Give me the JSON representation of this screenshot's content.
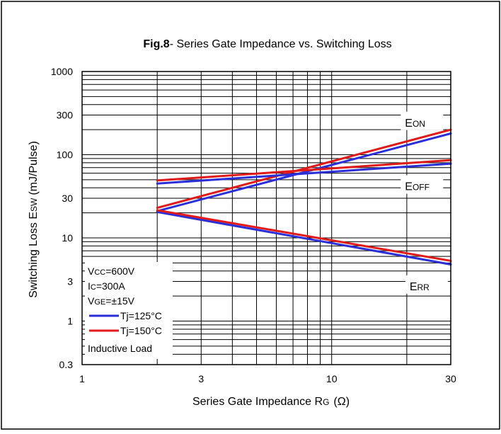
{
  "chart_data": {
    "type": "line",
    "title_bold": "Fig.8",
    "title_rest": "- Series Gate Impedance vs. Switching Loss",
    "xlabel_main": "Series Gate Impedance R",
    "xlabel_sub": "G",
    "xlabel_unit": "(Ω)",
    "ylabel_main": "Switching Loss E",
    "ylabel_sub": "SW",
    "ylabel_unit": "(mJ/Pulse)",
    "x_scale": "log",
    "y_scale": "log",
    "xlim": [
      1,
      30
    ],
    "ylim": [
      0.3,
      1000
    ],
    "x_ticks": [
      {
        "value": 1,
        "label": "1"
      },
      {
        "value": 3,
        "label": "3"
      },
      {
        "value": 10,
        "label": "10"
      },
      {
        "value": 30,
        "label": "30"
      }
    ],
    "y_ticks": [
      {
        "value": 0.3,
        "label": "0.3"
      },
      {
        "value": 1,
        "label": "1"
      },
      {
        "value": 3,
        "label": "3"
      },
      {
        "value": 10,
        "label": "10"
      },
      {
        "value": 30,
        "label": "30"
      },
      {
        "value": 100,
        "label": "100"
      },
      {
        "value": 300,
        "label": "300"
      },
      {
        "value": 1000,
        "label": "1000"
      }
    ],
    "grid": true,
    "legend_position": "bottom-left",
    "conditions": [
      {
        "main": "V",
        "sub": "CC",
        "rest": "=600V"
      },
      {
        "main": "I",
        "sub": "C",
        "rest": "=300A"
      },
      {
        "main": "V",
        "sub": "GE",
        "rest": "=±15V"
      }
    ],
    "legend_footer": "Inductive Load",
    "series": [
      {
        "name": "Tj=125°C",
        "color": "#2b2fd8"
      },
      {
        "name": "Tj=150°C",
        "color": "#e11a1a"
      }
    ],
    "curves": [
      {
        "group": "E_ON",
        "series": 0,
        "x": [
          2,
          30
        ],
        "y": [
          21,
          180
        ]
      },
      {
        "group": "E_ON",
        "series": 1,
        "x": [
          2,
          30
        ],
        "y": [
          23,
          200
        ]
      },
      {
        "group": "E_OFF",
        "series": 0,
        "x": [
          2,
          30
        ],
        "y": [
          45,
          78
        ]
      },
      {
        "group": "E_OFF",
        "series": 1,
        "x": [
          2,
          30
        ],
        "y": [
          49,
          86
        ]
      },
      {
        "group": "E_RR",
        "series": 0,
        "x": [
          2,
          30
        ],
        "y": [
          20.5,
          4.8
        ]
      },
      {
        "group": "E_RR",
        "series": 1,
        "x": [
          2,
          30
        ],
        "y": [
          21.5,
          5.3
        ]
      }
    ],
    "annotations": [
      {
        "id": "eon",
        "main": "E",
        "sub": "ON",
        "x": 23,
        "y": 250
      },
      {
        "id": "eoff",
        "main": "E",
        "sub": "OFF",
        "x": 23,
        "y": 43
      },
      {
        "id": "err",
        "main": "E",
        "sub": "RR",
        "x": 24,
        "y": 2.7
      }
    ]
  }
}
